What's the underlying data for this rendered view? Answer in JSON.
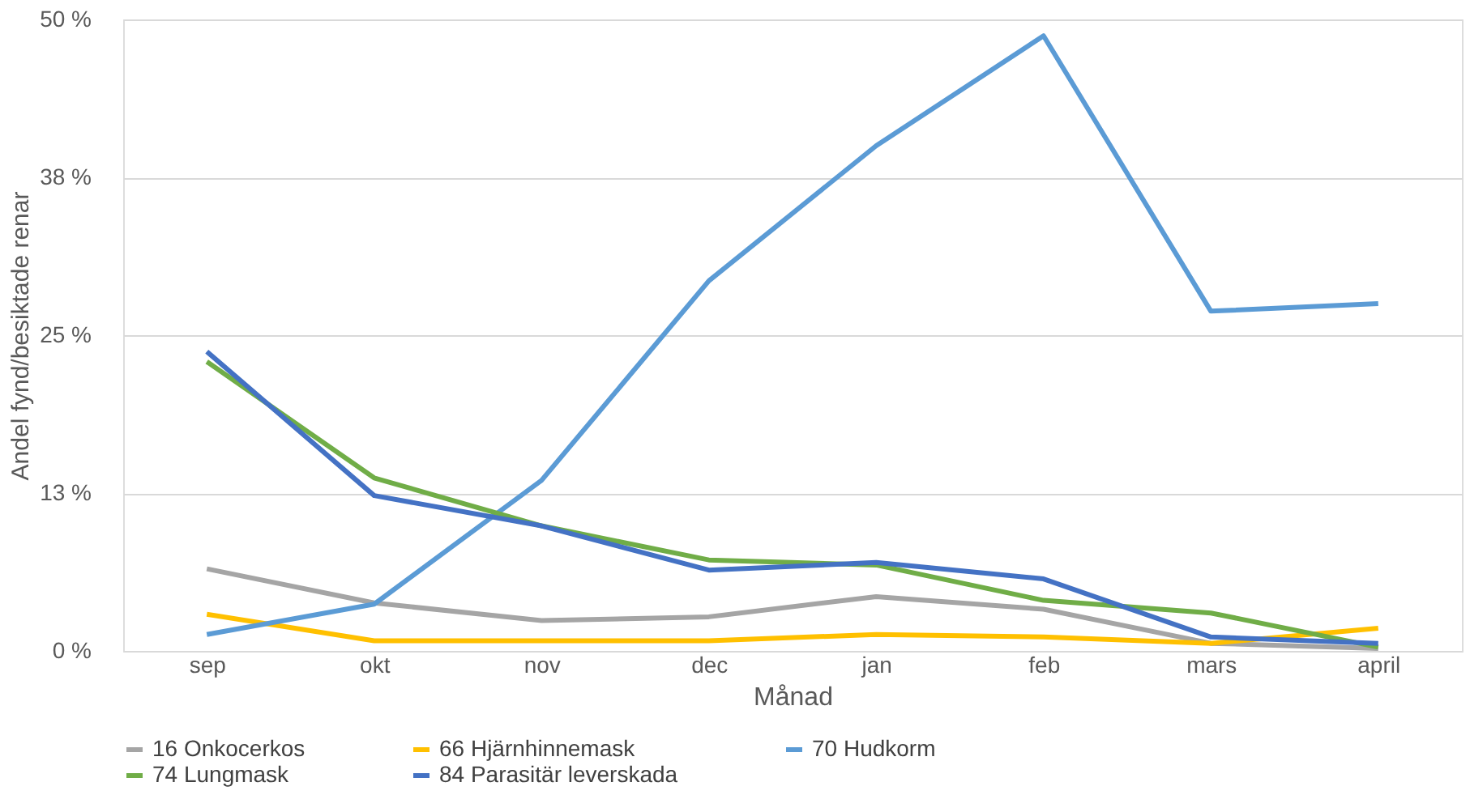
{
  "chart_data": {
    "type": "line",
    "xlabel": "Månad",
    "ylabel": "Andel fynd/besiktade renar",
    "categories": [
      "sep",
      "okt",
      "nov",
      "dec",
      "jan",
      "feb",
      "mars",
      "april"
    ],
    "ylim": [
      0,
      50
    ],
    "yticks": [
      {
        "value": 0,
        "label": "0 %"
      },
      {
        "value": 12.5,
        "label": "13 %"
      },
      {
        "value": 25,
        "label": "25 %"
      },
      {
        "value": 37.5,
        "label": "38 %"
      },
      {
        "value": 50,
        "label": "50 %"
      }
    ],
    "grid": "y",
    "legend": "bottom",
    "marker": "none",
    "line_style": "solid",
    "series": [
      {
        "name": "16 Onkocerkos",
        "color": "#a5a5a5",
        "values": [
          6.5,
          3.8,
          2.4,
          2.7,
          4.3,
          3.3,
          0.6,
          0.2
        ]
      },
      {
        "name": "66 Hjärnhinnemask",
        "color": "#ffc000",
        "values": [
          2.9,
          0.8,
          0.8,
          0.8,
          1.3,
          1.1,
          0.6,
          1.8
        ]
      },
      {
        "name": "70 Hudkorm",
        "color": "#5b9bd5",
        "values": [
          1.3,
          3.7,
          13.5,
          29.3,
          40.0,
          48.7,
          26.9,
          27.5
        ]
      },
      {
        "name": "74 Lungmask",
        "color": "#70ad47",
        "values": [
          22.9,
          13.7,
          9.9,
          7.2,
          6.8,
          4.0,
          3.0,
          0.3
        ]
      },
      {
        "name": "84 Parasitär leverskada",
        "color": "#4472c4",
        "values": [
          23.7,
          12.3,
          9.9,
          6.4,
          7.0,
          5.7,
          1.1,
          0.6
        ]
      }
    ]
  }
}
